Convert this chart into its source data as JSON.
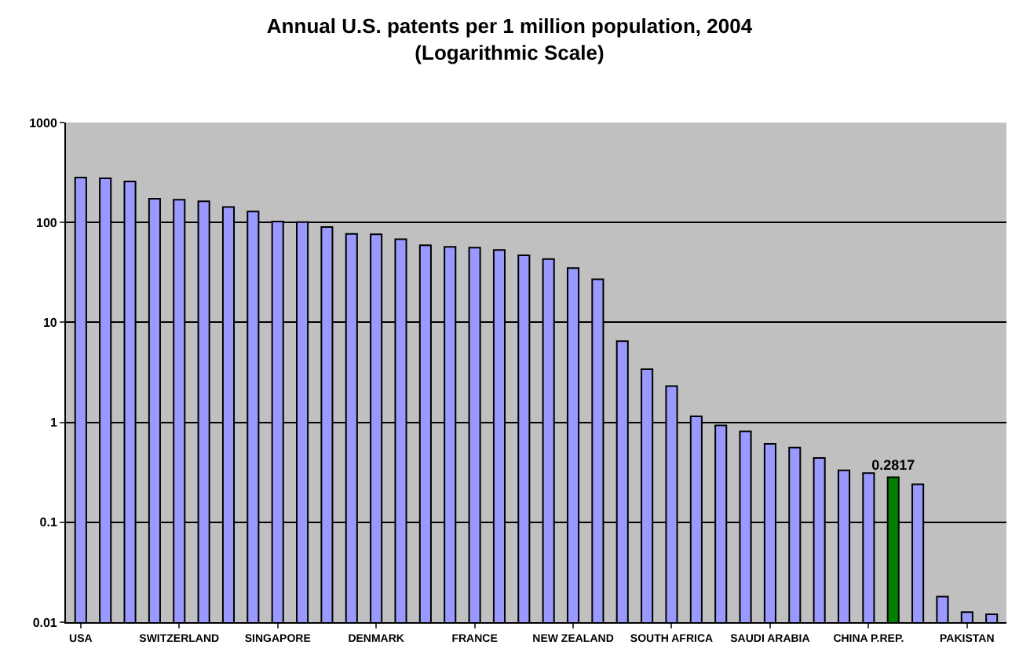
{
  "chart_data": {
    "type": "bar",
    "title": "Annual U.S. patents per 1 million population, 2004",
    "subtitle": "(Logarithmic Scale)",
    "categories": [
      "USA",
      null,
      null,
      null,
      "SWITZERLAND",
      null,
      null,
      null,
      "SINGAPORE",
      null,
      null,
      null,
      "DENMARK",
      null,
      null,
      null,
      "FRANCE",
      null,
      null,
      null,
      "NEW ZEALAND",
      null,
      null,
      null,
      "SOUTH AFRICA",
      null,
      null,
      null,
      "SAUDI ARABIA",
      null,
      null,
      null,
      "CHINA P.REP.",
      null,
      null,
      null,
      "PAKISTAN",
      null
    ],
    "values": [
      282,
      276,
      257,
      173,
      169,
      163,
      143,
      129,
      102,
      101,
      90,
      77,
      76,
      68,
      59,
      57,
      56,
      53,
      47,
      43,
      35,
      27,
      6.5,
      3.4,
      2.3,
      1.15,
      0.93,
      0.81,
      0.61,
      0.56,
      0.44,
      0.33,
      0.31,
      0.2817,
      0.24,
      0.018,
      0.0126,
      0.012
    ],
    "colors": [
      "#9999ff",
      "#9999ff",
      "#9999ff",
      "#9999ff",
      "#9999ff",
      "#9999ff",
      "#9999ff",
      "#9999ff",
      "#9999ff",
      "#9999ff",
      "#9999ff",
      "#9999ff",
      "#9999ff",
      "#9999ff",
      "#9999ff",
      "#9999ff",
      "#9999ff",
      "#9999ff",
      "#9999ff",
      "#9999ff",
      "#9999ff",
      "#9999ff",
      "#9999ff",
      "#9999ff",
      "#9999ff",
      "#9999ff",
      "#9999ff",
      "#9999ff",
      "#9999ff",
      "#9999ff",
      "#9999ff",
      "#9999ff",
      "#9999ff",
      "#008000",
      "#9999ff",
      "#9999ff",
      "#9999ff",
      "#9999ff"
    ],
    "value_labels": [
      null,
      null,
      null,
      null,
      null,
      null,
      null,
      null,
      null,
      null,
      null,
      null,
      null,
      null,
      null,
      null,
      null,
      null,
      null,
      null,
      null,
      null,
      null,
      null,
      null,
      null,
      null,
      null,
      null,
      null,
      null,
      null,
      null,
      "0.2817",
      null,
      null,
      null,
      null
    ],
    "log": true,
    "ylim": [
      0.01,
      1000
    ],
    "yticks": [
      0.01,
      0.1,
      1,
      10,
      100,
      1000
    ],
    "grid": "y"
  }
}
